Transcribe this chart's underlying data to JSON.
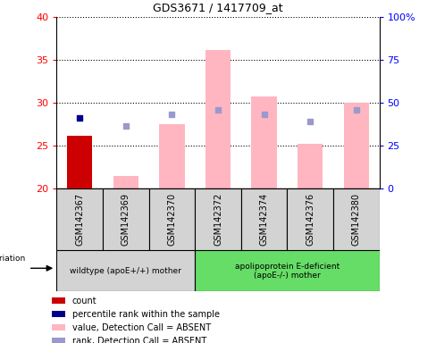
{
  "title": "GDS3671 / 1417709_at",
  "samples": [
    "GSM142367",
    "GSM142369",
    "GSM142370",
    "GSM142372",
    "GSM142374",
    "GSM142376",
    "GSM142380"
  ],
  "red_bar": [
    26.2,
    null,
    null,
    null,
    null,
    null,
    null
  ],
  "blue_square": [
    28.3,
    null,
    null,
    null,
    null,
    null,
    null
  ],
  "pink_bar": [
    null,
    21.5,
    27.5,
    36.2,
    30.8,
    25.2,
    30.0
  ],
  "purple_square": [
    null,
    27.3,
    28.7,
    29.2,
    28.7,
    27.8,
    29.2
  ],
  "ylim": [
    20,
    40
  ],
  "yticks_left": [
    20,
    25,
    30,
    35,
    40
  ],
  "yticks_right": [
    0,
    25,
    50,
    75,
    100
  ],
  "ybase": 20,
  "group1_label": "wildtype (apoE+/+) mother",
  "group2_label": "apolipoprotein E-deficient\n(apoE-/-) mother",
  "group1_indices": [
    0,
    1,
    2
  ],
  "group2_indices": [
    3,
    4,
    5,
    6
  ],
  "red_color": "#cc0000",
  "blue_color": "#00008B",
  "pink_color": "#FFB6C1",
  "purple_color": "#9999CC",
  "group1_bg": "#d3d3d3",
  "group2_bg": "#66dd66",
  "legend_items": [
    {
      "color": "#cc0000",
      "label": "count"
    },
    {
      "color": "#00008B",
      "label": "percentile rank within the sample"
    },
    {
      "color": "#FFB6C1",
      "label": "value, Detection Call = ABSENT"
    },
    {
      "color": "#9999CC",
      "label": "rank, Detection Call = ABSENT"
    }
  ]
}
